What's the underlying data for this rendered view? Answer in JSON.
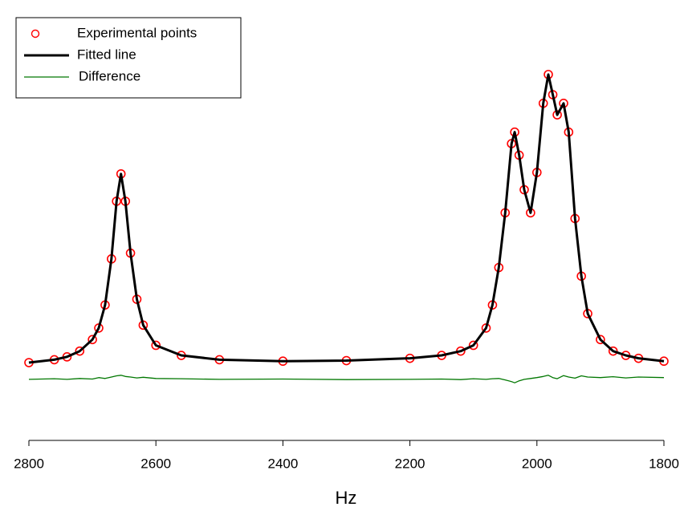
{
  "chart_data": {
    "type": "line",
    "xlabel": "Hz",
    "xlim": [
      2800,
      1800
    ],
    "xticks": [
      2800,
      2600,
      2400,
      2200,
      2000,
      1800
    ],
    "ylim": [
      -0.27,
      1.15
    ],
    "legend": "upper left",
    "x": [
      2800,
      2760,
      2740,
      2720,
      2700,
      2690,
      2680,
      2670,
      2662,
      2655,
      2648,
      2640,
      2630,
      2620,
      2600,
      2560,
      2500,
      2400,
      2300,
      2200,
      2150,
      2120,
      2100,
      2080,
      2070,
      2060,
      2050,
      2040,
      2035,
      2028,
      2020,
      2010,
      2000,
      1990,
      1982,
      1975,
      1968,
      1958,
      1950,
      1940,
      1930,
      1920,
      1900,
      1880,
      1860,
      1840,
      1800
    ],
    "series": [
      {
        "name": "Experimental points",
        "color": "#ff0000",
        "mode": "markers",
        "values": [
          0.0,
          0.01,
          0.02,
          0.04,
          0.08,
          0.12,
          0.2,
          0.36,
          0.56,
          0.655,
          0.56,
          0.38,
          0.22,
          0.13,
          0.06,
          0.025,
          0.01,
          0.005,
          0.007,
          0.015,
          0.025,
          0.04,
          0.06,
          0.12,
          0.2,
          0.33,
          0.52,
          0.76,
          0.8,
          0.72,
          0.6,
          0.52,
          0.66,
          0.9,
          1.0,
          0.93,
          0.86,
          0.9,
          0.8,
          0.5,
          0.3,
          0.17,
          0.08,
          0.04,
          0.025,
          0.015,
          0.005
        ]
      },
      {
        "name": "Fitted line",
        "color": "#000000",
        "mode": "lines",
        "values": [
          0.0,
          0.01,
          0.02,
          0.04,
          0.08,
          0.12,
          0.2,
          0.36,
          0.56,
          0.655,
          0.56,
          0.38,
          0.22,
          0.13,
          0.06,
          0.025,
          0.01,
          0.005,
          0.007,
          0.015,
          0.025,
          0.04,
          0.06,
          0.12,
          0.2,
          0.33,
          0.52,
          0.76,
          0.8,
          0.72,
          0.6,
          0.52,
          0.66,
          0.9,
          1.0,
          0.93,
          0.86,
          0.9,
          0.8,
          0.5,
          0.3,
          0.17,
          0.08,
          0.04,
          0.025,
          0.015,
          0.005
        ]
      },
      {
        "name": "Difference",
        "color": "#007700",
        "mode": "lines",
        "values": [
          -0.058,
          -0.056,
          -0.058,
          -0.055,
          -0.057,
          -0.052,
          -0.055,
          -0.05,
          -0.046,
          -0.044,
          -0.048,
          -0.05,
          -0.053,
          -0.051,
          -0.055,
          -0.056,
          -0.058,
          -0.057,
          -0.059,
          -0.058,
          -0.057,
          -0.059,
          -0.056,
          -0.058,
          -0.056,
          -0.055,
          -0.06,
          -0.066,
          -0.07,
          -0.063,
          -0.058,
          -0.055,
          -0.052,
          -0.048,
          -0.044,
          -0.052,
          -0.056,
          -0.045,
          -0.05,
          -0.054,
          -0.046,
          -0.05,
          -0.052,
          -0.049,
          -0.053,
          -0.05,
          -0.052
        ]
      }
    ]
  }
}
